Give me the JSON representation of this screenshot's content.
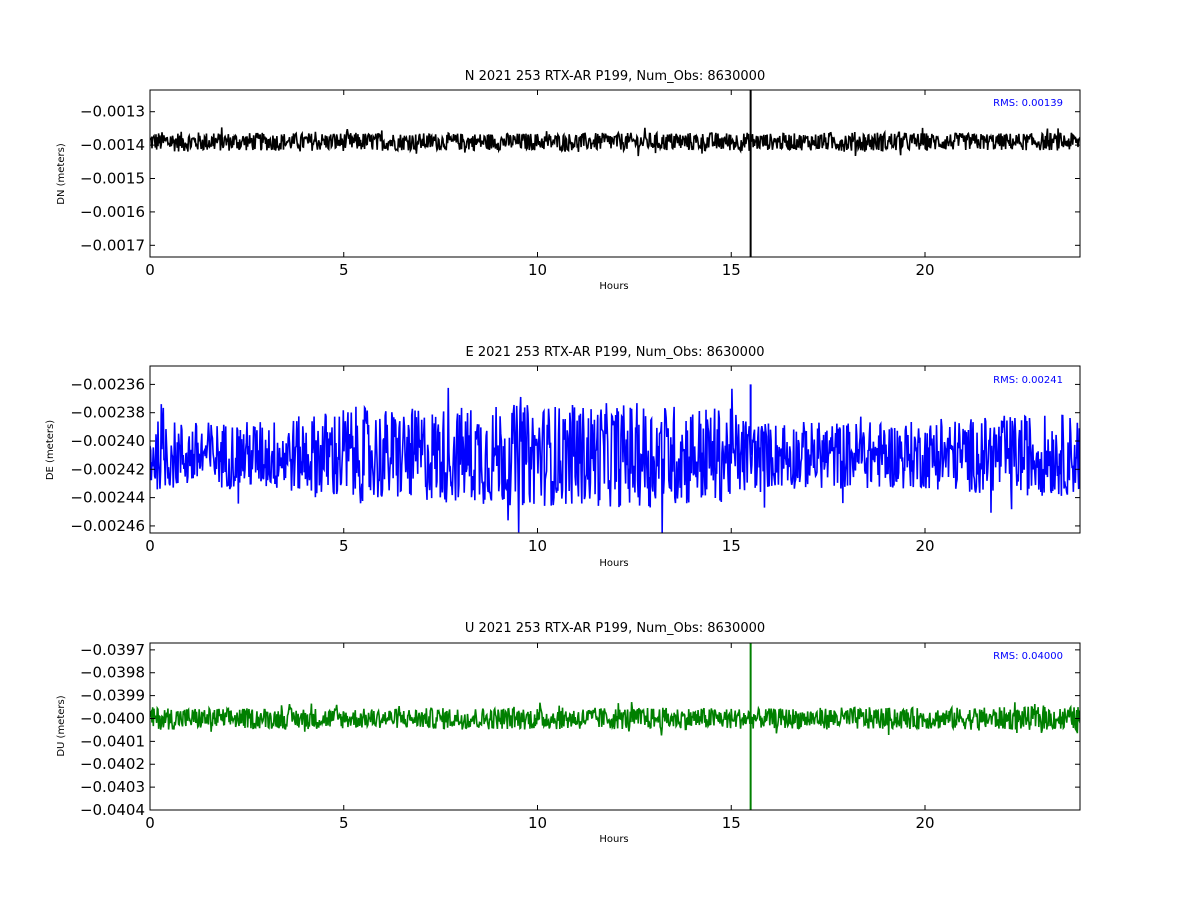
{
  "chart_data": [
    {
      "type": "line",
      "title": "N 2021 253 RTX-AR  P199, Num_Obs: 8630000",
      "xlabel": "Hours",
      "ylabel": "DN (meters)",
      "xlim": [
        0,
        24
      ],
      "ylim": [
        -0.001735,
        -0.001235
      ],
      "xticks": [
        0,
        5,
        10,
        15,
        20
      ],
      "xtick_labels": [
        "0",
        "5",
        "10",
        "15",
        "20"
      ],
      "yticks": [
        -0.0013,
        -0.0014,
        -0.0015,
        -0.0016,
        -0.0017
      ],
      "ytick_labels": [
        "−0.0013",
        "−0.0014",
        "−0.0015",
        "−0.0016",
        "−0.0017"
      ],
      "annotation": "RMS:  0.00139",
      "annotation_color": "#0000ff",
      "color": "#000000",
      "grid": false,
      "series": [
        {
          "x": [
            0,
            1,
            2,
            3,
            4,
            5,
            6,
            7,
            8,
            9,
            10,
            11,
            12,
            13,
            14,
            15,
            15.5,
            16,
            17,
            18,
            19,
            20,
            21,
            22,
            23,
            24
          ],
          "mean": [
            -0.00139,
            -0.00139,
            -0.00139,
            -0.00139,
            -0.00139,
            -0.00139,
            -0.00139,
            -0.00139,
            -0.00139,
            -0.00139,
            -0.00139,
            -0.00139,
            -0.00139,
            -0.00139,
            -0.00139,
            -0.00139,
            -0.00139,
            -0.00139,
            -0.00139,
            -0.00139,
            -0.00139,
            -0.00139,
            -0.00139,
            -0.00139,
            -0.00139,
            -0.00139
          ],
          "spread": [
            3e-05,
            3e-05,
            2.8e-05,
            2.7e-05,
            2.7e-05,
            2.8e-05,
            2.7e-05,
            2.6e-05,
            2.6e-05,
            2.6e-05,
            2.6e-05,
            2.6e-05,
            2.7e-05,
            2.7e-05,
            2.8e-05,
            2.8e-05,
            2.8e-05,
            2.5e-05,
            2.6e-05,
            3e-05,
            3e-05,
            2.7e-05,
            2.6e-05,
            2.6e-05,
            2.6e-05,
            2.7e-05
          ]
        }
      ],
      "spike": {
        "x": 15.5,
        "low": -0.001735,
        "high": -0.001235
      }
    },
    {
      "type": "line",
      "title": "E 2021 253 RTX-AR  P199, Num_Obs: 8630000",
      "xlabel": "Hours",
      "ylabel": "DE (meters)",
      "xlim": [
        0,
        24
      ],
      "ylim": [
        -0.002465,
        -0.002347
      ],
      "xticks": [
        0,
        5,
        10,
        15,
        20
      ],
      "xtick_labels": [
        "0",
        "5",
        "10",
        "15",
        "20"
      ],
      "yticks": [
        -0.00236,
        -0.00238,
        -0.0024,
        -0.00242,
        -0.00244,
        -0.00246
      ],
      "ytick_labels": [
        "−0.00236",
        "−0.00238",
        "−0.00240",
        "−0.00242",
        "−0.00244",
        "−0.00246"
      ],
      "annotation": "RMS:  0.00241",
      "annotation_color": "#0000ff",
      "color": "#0000ff",
      "grid": false,
      "series": [
        {
          "x": [
            0,
            1,
            2,
            3,
            4,
            5,
            6,
            7,
            8,
            9,
            10,
            11,
            12,
            13,
            14,
            15,
            15.5,
            16,
            17,
            18,
            19,
            20,
            21,
            22,
            23,
            24
          ],
          "mean": [
            -0.00241,
            -0.00241,
            -0.00241,
            -0.00241,
            -0.00241,
            -0.00241,
            -0.00241,
            -0.00241,
            -0.00241,
            -0.00241,
            -0.00241,
            -0.00241,
            -0.00241,
            -0.00241,
            -0.00241,
            -0.00241,
            -0.00241,
            -0.00241,
            -0.00241,
            -0.00241,
            -0.00241,
            -0.00241,
            -0.00241,
            -0.00241,
            -0.00241,
            -0.00241
          ],
          "spread": [
            2.5e-05,
            2.4e-05,
            2.4e-05,
            2.5e-05,
            2.8e-05,
            3.5e-05,
            3.3e-05,
            3.3e-05,
            3.5e-05,
            3.6e-05,
            3.6e-05,
            3.6e-05,
            3.7e-05,
            3.7e-05,
            3.6e-05,
            3.3e-05,
            2.5e-05,
            2.4e-05,
            2.4e-05,
            2.4e-05,
            2.4e-05,
            2.4e-05,
            2.6e-05,
            2.8e-05,
            2.9e-05,
            2.9e-05
          ]
        }
      ],
      "spike": {
        "x": 15.5,
        "low": -0.00241,
        "high": -0.00236
      }
    },
    {
      "type": "line",
      "title": "U 2021 253 RTX-AR  P199, Num_Obs: 8630000",
      "xlabel": "Hours",
      "ylabel": "DU (meters)",
      "xlim": [
        0,
        24
      ],
      "ylim": [
        -0.0404,
        -0.03967
      ],
      "xticks": [
        0,
        5,
        10,
        15,
        20
      ],
      "xtick_labels": [
        "0",
        "5",
        "10",
        "15",
        "20"
      ],
      "yticks": [
        -0.0397,
        -0.0398,
        -0.0399,
        -0.04,
        -0.0401,
        -0.0402,
        -0.0403,
        -0.0404
      ],
      "ytick_labels": [
        "−0.0397",
        "−0.0398",
        "−0.0399",
        "−0.0400",
        "−0.0401",
        "−0.0402",
        "−0.0403",
        "−0.0404"
      ],
      "annotation": "RMS:  0.04000",
      "annotation_color": "#0000ff",
      "color": "#008000",
      "grid": false,
      "series": [
        {
          "x": [
            0,
            1,
            2,
            3,
            4,
            5,
            6,
            7,
            8,
            9,
            10,
            11,
            12,
            13,
            14,
            15,
            15.5,
            16,
            17,
            18,
            19,
            20,
            21,
            22,
            23,
            24
          ],
          "mean": [
            -0.04,
            -0.04,
            -0.04,
            -0.04,
            -0.04,
            -0.04,
            -0.04,
            -0.04,
            -0.04,
            -0.04,
            -0.04,
            -0.04,
            -0.04,
            -0.04,
            -0.04,
            -0.04,
            -0.04,
            -0.04,
            -0.04,
            -0.04,
            -0.04,
            -0.04,
            -0.04,
            -0.04,
            -0.04,
            -0.04
          ],
          "spread": [
            5e-05,
            4.8e-05,
            4.5e-05,
            4.5e-05,
            4.7e-05,
            4.5e-05,
            4.2e-05,
            4.5e-05,
            4.8e-05,
            4.8e-05,
            4.8e-05,
            4.8e-05,
            4.8e-05,
            4.8e-05,
            4.8e-05,
            4.6e-05,
            4.5e-05,
            4.4e-05,
            4.6e-05,
            5e-05,
            4.8e-05,
            4.7e-05,
            4.9e-05,
            5e-05,
            5.2e-05,
            5.2e-05
          ]
        }
      ],
      "spike": {
        "x": 15.5,
        "low": -0.0404,
        "high": -0.03967
      }
    }
  ]
}
